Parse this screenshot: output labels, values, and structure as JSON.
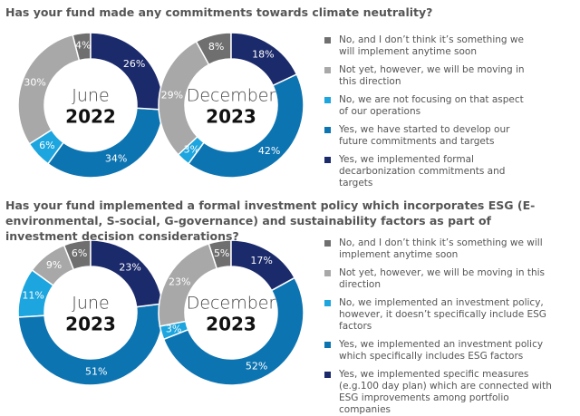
{
  "chart_data": [
    {
      "type": "donut",
      "title": "Has your fund made any commitments towards climate neutrality?",
      "categories": [
        "No, and I don’t think it’s something we will implement anytime soon",
        "Not yet, however, we will be moving in this direction",
        "No, we are not focusing on that aspect of our operations",
        "Yes, we have started to develop our future commitments and targets",
        "Yes, we implemented formal decarbonization commitments and targets"
      ],
      "colors": [
        "#6f6f6f",
        "#a8a8a8",
        "#1ca5de",
        "#0d74b2",
        "#1b2a6b"
      ],
      "series": [
        {
          "month": "June",
          "year": "2022",
          "values": [
            4,
            30,
            6,
            34,
            26
          ],
          "value_labels": [
            "4%",
            "30%",
            "6%",
            "34%",
            "26%"
          ]
        },
        {
          "month": "December",
          "year": "2023",
          "values": [
            8,
            29,
            3,
            42,
            18
          ],
          "value_labels": [
            "8%",
            "29%",
            "3%",
            "42%",
            "18%"
          ]
        }
      ]
    },
    {
      "type": "donut",
      "title": "Has your fund implemented a formal investment policy which incorporates ESG (E-environmental, S-social, G-governance) and sustainability factors as part of investment decision considerations?",
      "categories": [
        "No, and I don’t think it’s something we will implement anytime soon",
        "Not yet, however, we will be moving in this direction",
        "No, we implemented an investment policy, however, it doesn’t specifically include ESG factors",
        "Yes, we implemented an investment policy which specifically includes ESG factors",
        "Yes, we implemented specific measures (e.g.100 day plan) which are connected with ESG improvements among portfolio companies"
      ],
      "colors": [
        "#6f6f6f",
        "#a8a8a8",
        "#1ca5de",
        "#0d74b2",
        "#1b2a6b"
      ],
      "series": [
        {
          "month": "June",
          "year": "2023",
          "values": [
            6,
            9,
            11,
            51,
            23
          ],
          "value_labels": [
            "6%",
            "9%",
            "11%",
            "51%",
            "23%"
          ]
        },
        {
          "month": "December",
          "year": "2023",
          "values": [
            5,
            23,
            3,
            52,
            17
          ],
          "value_labels": [
            "5%",
            "23%",
            "3%",
            "52%",
            "17%"
          ]
        }
      ]
    }
  ]
}
